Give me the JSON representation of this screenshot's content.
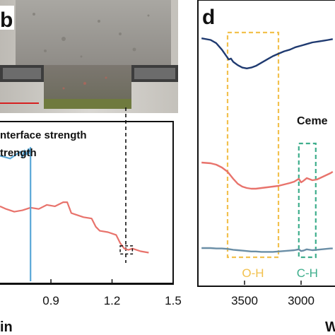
{
  "panels": {
    "left_label": "b",
    "right_label": "d"
  },
  "colors": {
    "strength_curve": "#e8736c",
    "interface_curve": "#5aa8d8",
    "ftir_top": "#1f3a70",
    "ftir_middle": "#e8736c",
    "ftir_bottom": "#6a8ea6",
    "oh_box": "#f2c14e",
    "ch_box": "#3fae8c",
    "scale_bar": "#d62020"
  },
  "photo": {
    "description_icon": "concrete-specimen-photo"
  },
  "chart_data": [
    {
      "type": "line",
      "legend": [
        "Interface strength",
        "Strength"
      ],
      "legend_display": [
        "nterface strength",
        "trength"
      ],
      "xlabel_visible": "in",
      "xticks": [
        0.9,
        1.2,
        1.5
      ],
      "xtick_labels": [
        "0.9",
        "1.2",
        "1.5"
      ],
      "xlim": [
        0.65,
        1.5
      ],
      "series": [
        {
          "name": "Strength",
          "color": "#e8736c",
          "x": [
            0.65,
            0.68,
            0.72,
            0.76,
            0.8,
            0.84,
            0.88,
            0.92,
            0.96,
            0.98,
            1.0,
            1.02,
            1.06,
            1.1,
            1.12,
            1.14,
            1.18,
            1.22,
            1.24,
            1.26,
            1.28,
            1.3,
            1.34,
            1.38
          ],
          "y": [
            0.55,
            0.53,
            0.51,
            0.52,
            0.54,
            0.53,
            0.56,
            0.55,
            0.58,
            0.58,
            0.5,
            0.49,
            0.47,
            0.46,
            0.4,
            0.37,
            0.36,
            0.34,
            0.28,
            0.24,
            0.23,
            0.24,
            0.22,
            0.21
          ]
        },
        {
          "name": "Interface strength",
          "color": "#5aa8d8",
          "x": [
            0.65,
            0.7,
            0.73,
            0.75,
            0.76,
            0.77,
            0.78,
            0.79,
            0.795,
            0.8,
            0.8
          ],
          "y": [
            0.92,
            0.9,
            0.93,
            0.95,
            0.91,
            0.96,
            0.93,
            0.97,
            0.94,
            0.98,
            0.0
          ]
        }
      ],
      "annotation_box": {
        "x": [
          1.24,
          1.3
        ],
        "y": [
          0.2,
          0.26
        ]
      }
    },
    {
      "type": "line",
      "xlabel_visible": "W",
      "xticks": [
        3500,
        3000
      ],
      "xtick_labels": [
        "3500",
        "3000"
      ],
      "xlim": [
        3900,
        2700
      ],
      "legend_fragment": "Ceme",
      "bands": [
        {
          "label": "O-H",
          "x": [
            3650,
            3200
          ],
          "color": "#f2c14e"
        },
        {
          "label": "C-H",
          "x": [
            3020,
            2870
          ],
          "color": "#3fae8c"
        }
      ],
      "series": [
        {
          "color": "#1f3a70",
          "x": [
            3880,
            3800,
            3750,
            3700,
            3660,
            3640,
            3620,
            3600,
            3560,
            3520,
            3480,
            3440,
            3400,
            3350,
            3300,
            3250,
            3200,
            3150,
            3100,
            3050,
            3000,
            2950,
            2900,
            2850,
            2800,
            2760,
            2720
          ],
          "y": [
            0.92,
            0.9,
            0.86,
            0.78,
            0.7,
            0.66,
            0.67,
            0.63,
            0.59,
            0.56,
            0.55,
            0.56,
            0.58,
            0.62,
            0.66,
            0.7,
            0.73,
            0.76,
            0.78,
            0.81,
            0.83,
            0.85,
            0.87,
            0.88,
            0.89,
            0.9,
            0.91
          ]
        },
        {
          "color": "#e8736c",
          "x": [
            3880,
            3800,
            3750,
            3700,
            3650,
            3600,
            3560,
            3520,
            3480,
            3440,
            3400,
            3350,
            3300,
            3250,
            3200,
            3150,
            3100,
            3060,
            3040,
            3020,
            3000,
            2980,
            2950,
            2900,
            2860,
            2820,
            2780,
            2740,
            2720
          ],
          "y": [
            0.45,
            0.44,
            0.42,
            0.38,
            0.32,
            0.22,
            0.15,
            0.11,
            0.09,
            0.08,
            0.08,
            0.09,
            0.1,
            0.11,
            0.12,
            0.14,
            0.16,
            0.18,
            0.2,
            0.22,
            0.17,
            0.19,
            0.23,
            0.2,
            0.21,
            0.24,
            0.27,
            0.3,
            0.32
          ]
        },
        {
          "color": "#6a8ea6",
          "x": [
            3880,
            3800,
            3750,
            3700,
            3650,
            3600,
            3560,
            3520,
            3480,
            3440,
            3400,
            3350,
            3300,
            3250,
            3200,
            3150,
            3100,
            3060,
            3040,
            3020,
            3000,
            2980,
            2950,
            2900,
            2860,
            2820,
            2780,
            2740,
            2720
          ],
          "y": [
            0.15,
            0.15,
            0.14,
            0.14,
            0.13,
            0.11,
            0.1,
            0.09,
            0.08,
            0.07,
            0.07,
            0.06,
            0.06,
            0.06,
            0.07,
            0.08,
            0.09,
            0.1,
            0.11,
            0.12,
            0.08,
            0.09,
            0.12,
            0.1,
            0.11,
            0.12,
            0.13,
            0.14,
            0.14
          ]
        }
      ]
    }
  ]
}
